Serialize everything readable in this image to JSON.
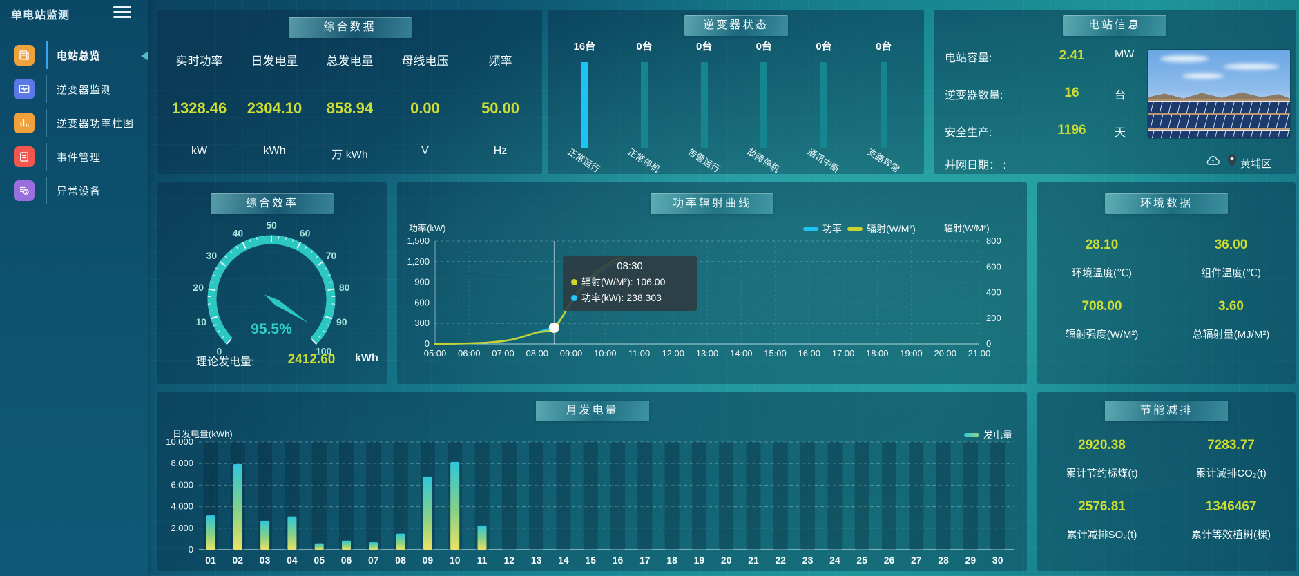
{
  "app": {
    "title": "单电站监测"
  },
  "sidebar": {
    "items": [
      {
        "label": "电站总览",
        "icon": "overview-icon",
        "color": "#efa23c",
        "active": true
      },
      {
        "label": "逆变器监测",
        "icon": "monitor-icon",
        "color": "#5a78e6",
        "active": false
      },
      {
        "label": "逆变器功率柱图",
        "icon": "bar-chart-icon",
        "color": "#efa23c",
        "active": false
      },
      {
        "label": "事件管理",
        "icon": "notebook-icon",
        "color": "#f2564d",
        "active": false
      },
      {
        "label": "异常设备",
        "icon": "device-alert-icon",
        "color": "#9b6ede",
        "active": false
      }
    ]
  },
  "summary": {
    "title": "综合数据",
    "metrics": [
      {
        "label": "实时功率",
        "value": "1328.46",
        "unit": "kW"
      },
      {
        "label": "日发电量",
        "value": "2304.10",
        "unit": "kWh"
      },
      {
        "label": "总发电量",
        "value": "858.94",
        "unit": "万 kWh"
      },
      {
        "label": "母线电压",
        "value": "0.00",
        "unit": "V"
      },
      {
        "label": "频率",
        "value": "50.00",
        "unit": "Hz"
      }
    ]
  },
  "inverter_status": {
    "title": "逆变器状态",
    "active_color": "#1fc3f3",
    "inactive_color": "#15868f",
    "bars": [
      {
        "count": "16台",
        "label": "正常运行",
        "value": 16,
        "active": true
      },
      {
        "count": "0台",
        "label": "正常停机",
        "value": 0,
        "active": false
      },
      {
        "count": "0台",
        "label": "告警运行",
        "value": 0,
        "active": false
      },
      {
        "count": "0台",
        "label": "故障停机",
        "value": 0,
        "active": false
      },
      {
        "count": "0台",
        "label": "通讯中断",
        "value": 0,
        "active": false
      },
      {
        "count": "0台",
        "label": "支路异常",
        "value": 0,
        "active": false
      }
    ]
  },
  "station_info": {
    "title": "电站信息",
    "rows": [
      {
        "label": "电站容量:",
        "value": "2.41",
        "unit": "MW"
      },
      {
        "label": "逆变器数量:",
        "value": "16",
        "unit": "台"
      },
      {
        "label": "安全生产:",
        "value": "1196",
        "unit": "天"
      },
      {
        "label": "并网日期： :",
        "value": "",
        "unit": ""
      }
    ],
    "location": "黄埔区"
  },
  "efficiency": {
    "title": "综合效率",
    "gauge": {
      "min": 0,
      "max": 100,
      "value": 95.5,
      "display": "95.5%",
      "tick_step": 10,
      "color": "#2bc7c0"
    },
    "footer_label": "理论发电量:",
    "footer_value": "2412.60",
    "footer_unit": "kWh"
  },
  "power_curve": {
    "title": "功率辐射曲线",
    "left_axis_title": "功率(kW)",
    "right_axis_title": "辐射(W/M²)",
    "legend": [
      {
        "name": "功率",
        "color": "#1fc3f3"
      },
      {
        "name": "辐射(W/M²)",
        "color": "#c9d22e"
      }
    ],
    "tooltip": {
      "time": "08:30",
      "lines": [
        {
          "dot": "#d4d32f",
          "text": "辐射(W/M²): 106.00"
        },
        {
          "dot": "#25c8f7",
          "text": "功率(kW): 238.303"
        }
      ]
    },
    "chart_data": {
      "type": "line",
      "x_ticks": [
        "05:00",
        "06:00",
        "07:00",
        "08:00",
        "09:00",
        "10:00",
        "11:00",
        "12:00",
        "13:00",
        "14:00",
        "15:00",
        "16:00",
        "17:00",
        "18:00",
        "19:00",
        "20:00",
        "21:00"
      ],
      "xlim_hours": [
        5,
        21
      ],
      "ylim_left": [
        0,
        1500
      ],
      "left_ticks": [
        0,
        300,
        600,
        900,
        1200,
        1500
      ],
      "ylim_right": [
        0,
        800
      ],
      "right_ticks": [
        0,
        200,
        400,
        600,
        800
      ],
      "pointer_hour": 8.5,
      "series": [
        {
          "name": "功率",
          "axis": "left",
          "color": "#1fc3f3",
          "x": [
            5,
            5.5,
            6,
            6.5,
            7,
            7.25,
            7.5,
            7.75,
            8,
            8.25,
            8.5,
            8.75,
            9,
            9.25,
            9.5,
            9.75,
            10,
            10.25,
            10.5
          ],
          "values": [
            2,
            4,
            8,
            18,
            40,
            60,
            90,
            130,
            170,
            205,
            238.3,
            400,
            600,
            760,
            900,
            1010,
            1100,
            1170,
            1210
          ]
        },
        {
          "name": "辐射(W/M²)",
          "axis": "right",
          "color": "#c9d22e",
          "x": [
            5,
            5.5,
            6,
            6.5,
            7,
            7.25,
            7.5,
            7.75,
            8,
            8.25,
            8.5,
            8.75,
            9,
            9.25,
            9.5,
            9.75,
            10,
            10.25,
            10.5
          ],
          "values": [
            1,
            2,
            5,
            10,
            22,
            33,
            50,
            70,
            90,
            98,
            106,
            215,
            330,
            420,
            500,
            560,
            610,
            650,
            670
          ]
        }
      ]
    }
  },
  "environment": {
    "title": "环境数据",
    "metrics": [
      {
        "value": "28.10",
        "label": "环境温度(℃)"
      },
      {
        "value": "36.00",
        "label": "组件温度(℃)"
      },
      {
        "value": "708.00",
        "label": "辐射强度(W/M²)"
      },
      {
        "value": "3.60",
        "label": "总辐射量(MJ/M²)"
      }
    ]
  },
  "monthly": {
    "title": "月发电量",
    "axis_title": "日发电量(kWh)",
    "legend": "发电量",
    "chart_data": {
      "type": "bar",
      "categories": [
        "01",
        "02",
        "03",
        "04",
        "05",
        "06",
        "07",
        "08",
        "09",
        "10",
        "11",
        "12",
        "13",
        "14",
        "15",
        "16",
        "17",
        "18",
        "19",
        "20",
        "21",
        "22",
        "23",
        "24",
        "25",
        "26",
        "27",
        "28",
        "29",
        "30"
      ],
      "values": [
        3200,
        7950,
        2700,
        3100,
        600,
        850,
        700,
        1500,
        6800,
        8150,
        2250,
        0,
        0,
        0,
        0,
        0,
        0,
        0,
        0,
        0,
        0,
        0,
        0,
        0,
        0,
        0,
        0,
        0,
        0,
        0
      ],
      "ylim": [
        0,
        10000
      ],
      "y_ticks": [
        0,
        2000,
        4000,
        6000,
        8000,
        10000
      ],
      "bar_gradient": [
        "#2fc6da",
        "#86d187",
        "#e9e364"
      ]
    }
  },
  "savings": {
    "title": "节能减排",
    "metrics": [
      {
        "value": "2920.38",
        "label": "累计节约标煤(t)"
      },
      {
        "value": "7283.77",
        "label": "累计减排CO₂(t)"
      },
      {
        "value": "2576.81",
        "label": "累计减排SO₂(t)"
      },
      {
        "value": "1346467",
        "label": "累计等效植树(棵)"
      }
    ]
  },
  "colors": {
    "value_yellow": "#ccdd33",
    "accent_teal": "#2bc7c0"
  }
}
